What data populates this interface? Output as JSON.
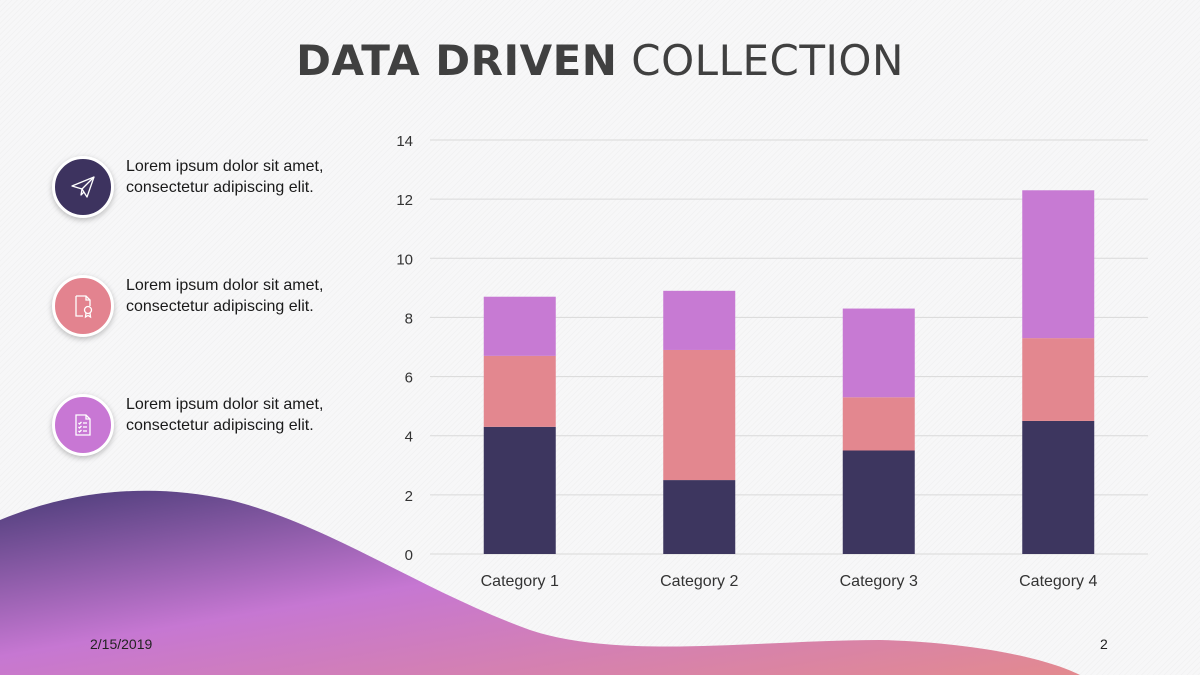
{
  "title": {
    "bold": "DATA DRIVEN",
    "light": "COLLECTION"
  },
  "bullets": [
    {
      "icon": "paper-plane-icon",
      "color": "#3d335f",
      "text": "Lorem ipsum dolor sit amet, consectetur adipiscing elit."
    },
    {
      "icon": "certificate-document-icon",
      "color": "#e3838f",
      "text": "Lorem ipsum dolor sit amet, consectetur adipiscing elit."
    },
    {
      "icon": "checklist-icon",
      "color": "#c877d4",
      "text": "Lorem ipsum dolor sit amet, consectetur adipiscing elit."
    }
  ],
  "footer": {
    "date": "2/15/2019",
    "page": "2"
  },
  "chart_data": {
    "type": "bar",
    "stacked": true,
    "categories": [
      "Category 1",
      "Category 2",
      "Category 3",
      "Category 4"
    ],
    "series": [
      {
        "values": [
          4.3,
          2.5,
          3.5,
          4.5
        ],
        "color": "#3d365f"
      },
      {
        "values": [
          2.4,
          4.4,
          1.8,
          2.8
        ],
        "color": "#e3878f"
      },
      {
        "values": [
          2.0,
          2.0,
          3.0,
          5.0
        ],
        "color": "#c77ad3"
      }
    ],
    "ylim": [
      0,
      14
    ],
    "yticks": [
      0,
      2,
      4,
      6,
      8,
      10,
      12,
      14
    ],
    "grid": true,
    "legend": "none"
  }
}
